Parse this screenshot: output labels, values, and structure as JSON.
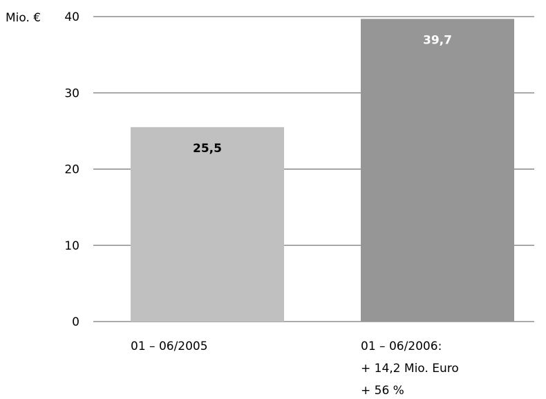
{
  "chart_data": {
    "type": "bar",
    "y_unit_label": "Mio. €",
    "ylim": [
      0,
      40
    ],
    "y_ticks": [
      "0",
      "10",
      "20",
      "30",
      "40"
    ],
    "grid": true,
    "categories": [
      {
        "label_lines": [
          "01 – 06/2005"
        ]
      },
      {
        "label_lines": [
          "01 – 06/2006:",
          "+ 14,2 Mio. Euro",
          "+ 56 %"
        ]
      }
    ],
    "values": [
      25.5,
      39.7
    ],
    "value_labels": [
      "25,5",
      "39,7"
    ],
    "bar_colors": [
      "#c0c0c0",
      "#969696"
    ],
    "value_label_colors": [
      "#000000",
      "#ffffff"
    ]
  }
}
